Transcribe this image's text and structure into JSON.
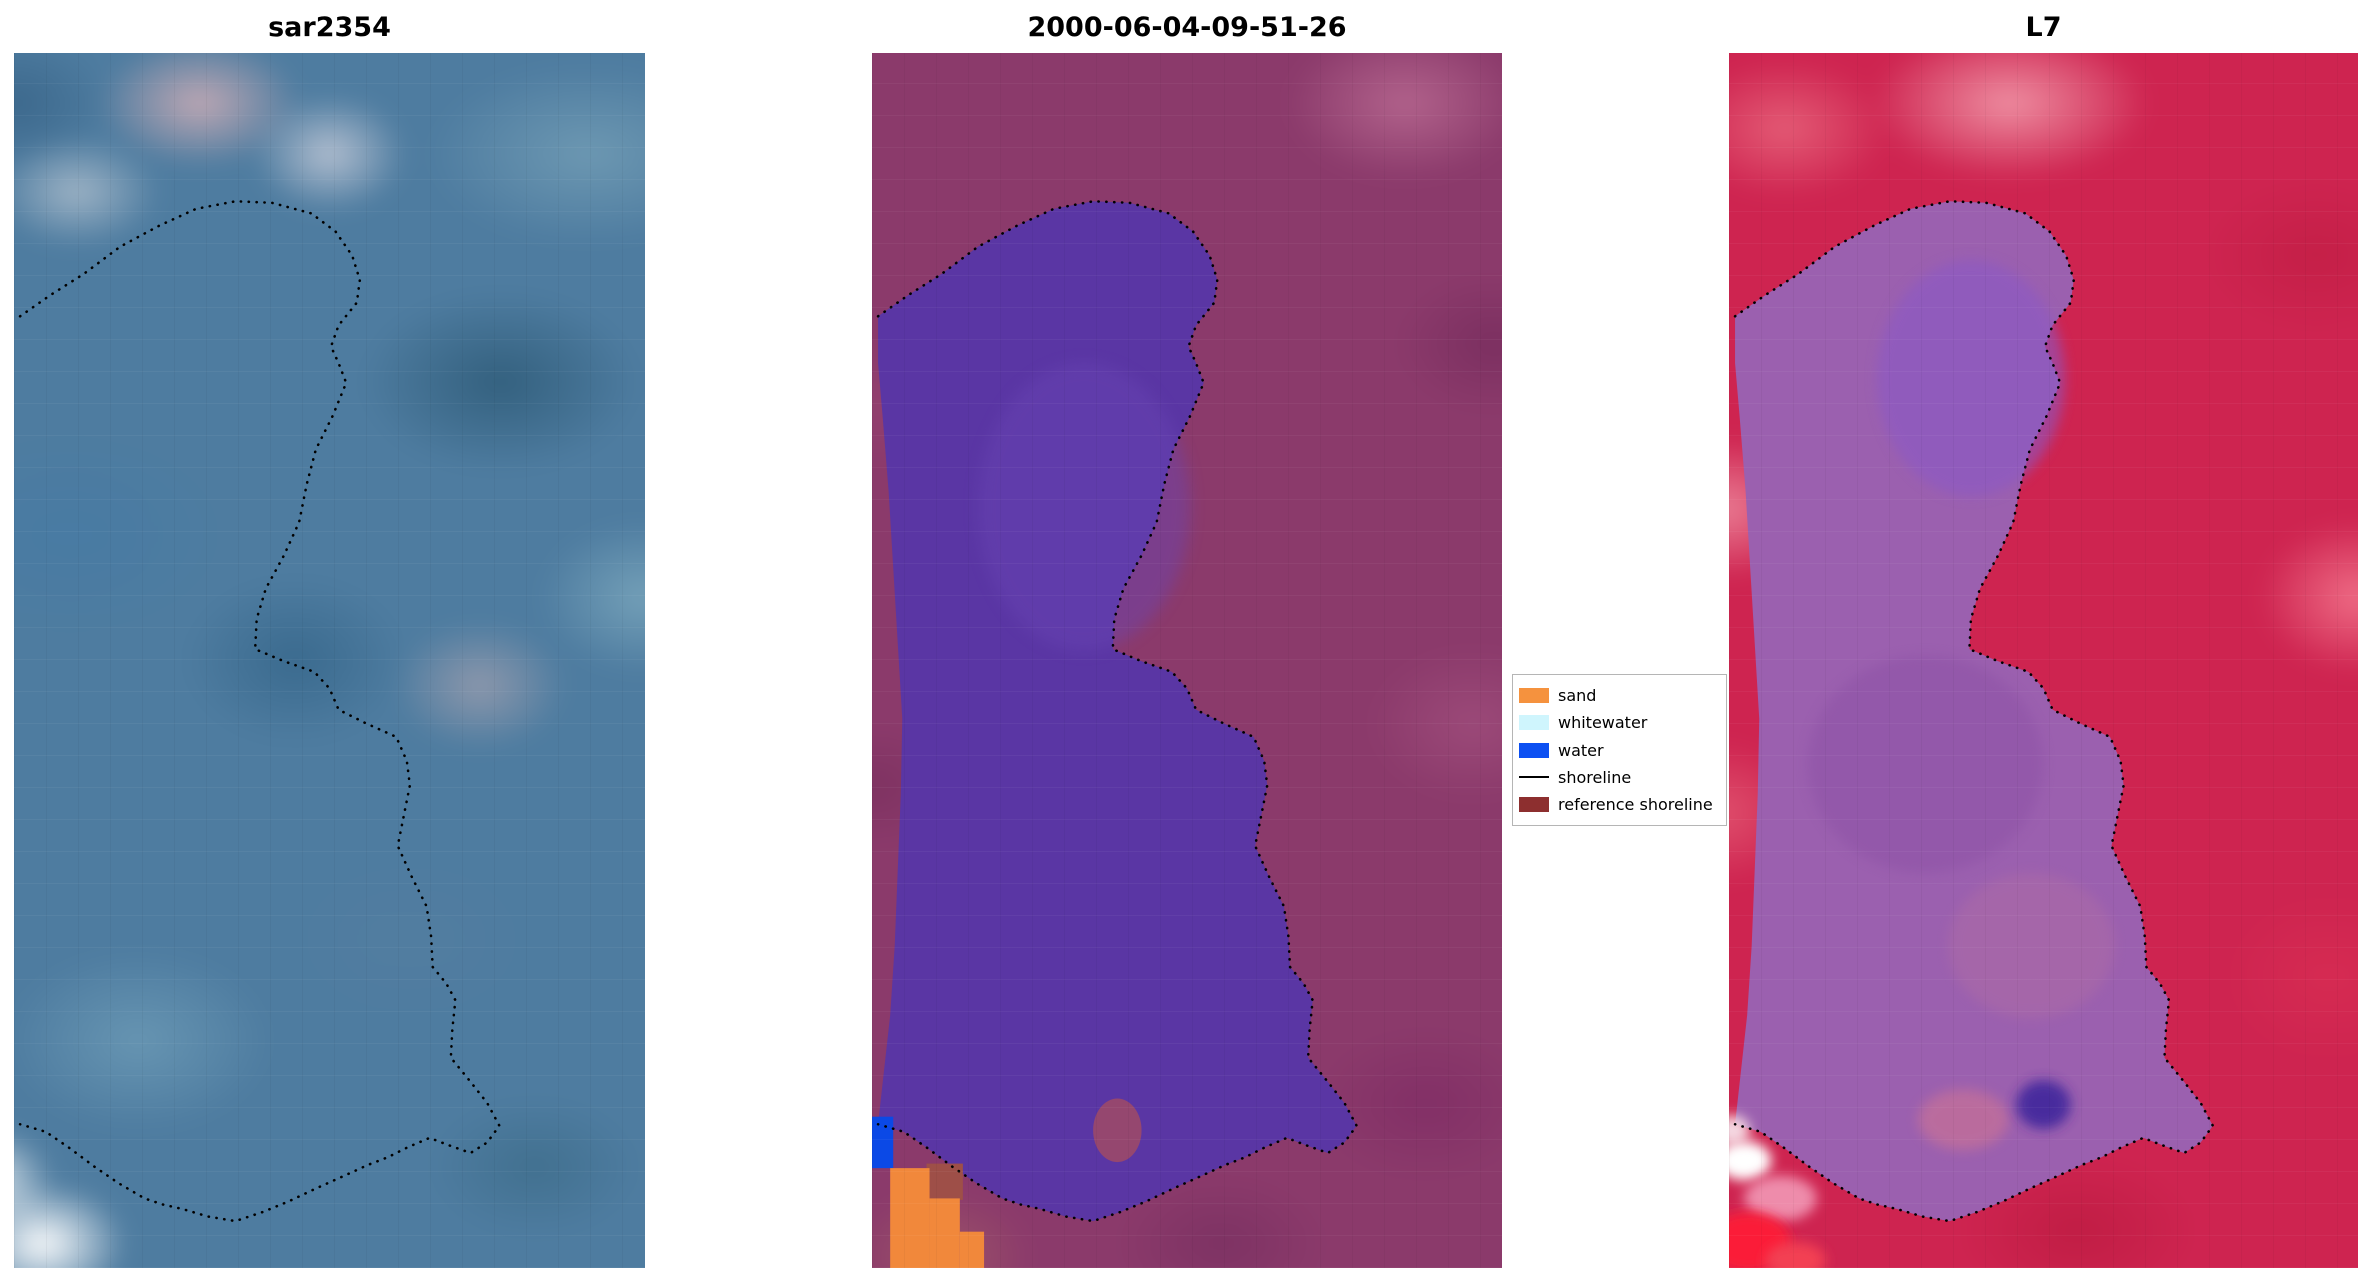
{
  "figure": {
    "background_color": "#ffffff",
    "panels": [
      {
        "key": "sar",
        "title": "sar2354",
        "kind": "SAR satellite image panel",
        "dominant_color": "#4e7ca0"
      },
      {
        "key": "classified",
        "title": "2000-06-04-09-51-26",
        "kind": "classified optical image panel",
        "dominant_color": "#8b3a6b",
        "water_class_color": "#5a36a4",
        "sand_patch_color": "#f1883b",
        "water_patch_color": "#0b49e6"
      },
      {
        "key": "l7",
        "title": "L7",
        "kind": "Landsat 7 optical image panel",
        "dominant_color": "#ce2450",
        "lagoon_color": "#9b60af"
      }
    ],
    "legend": {
      "items": [
        {
          "key": "sand",
          "label": "sand",
          "color": "#f5923e",
          "type": "patch"
        },
        {
          "key": "whitewater",
          "label": "whitewater",
          "color": "#cff5fd",
          "type": "patch"
        },
        {
          "key": "water",
          "label": "water",
          "color": "#0c50f2",
          "type": "patch"
        },
        {
          "key": "shoreline",
          "label": "shoreline",
          "color": "#000000",
          "type": "line"
        },
        {
          "key": "reference-shoreline",
          "label": "reference shoreline",
          "label_visible": "reference shor",
          "color": "#8d2f2f",
          "type": "patch"
        }
      ]
    },
    "overlay": {
      "shoreline_marker": "black dotted contour line"
    }
  },
  "chart_data": {
    "type": "heatmap",
    "panel_titles": [
      "sar2354",
      "2000-06-04-09-51-26",
      "L7"
    ],
    "description": "Three co-registered satellite views of the same coastal water body: a blue-gray SAR image (sar2354), a purple/magenta classified optical scene dated 2000-06-04-09-51-26 with small sand (orange) and water (blue) patches in the bottom-left corner, and a red/purple Landsat 7 (L7) scene. The detected shoreline is overlaid on all three panels as a black dotted contour.",
    "legend_entries_visible": [
      "sand",
      "whitewater",
      "water",
      "shoreline",
      "reference shor"
    ],
    "class_colors": {
      "sand": "#f5923e",
      "whitewater": "#cff5fd",
      "water": "#0c50f2",
      "shoreline": "#000000",
      "reference_shoreline": "#8d2f2f"
    },
    "legend_position": "middle right of center panel",
    "grid": false
  }
}
